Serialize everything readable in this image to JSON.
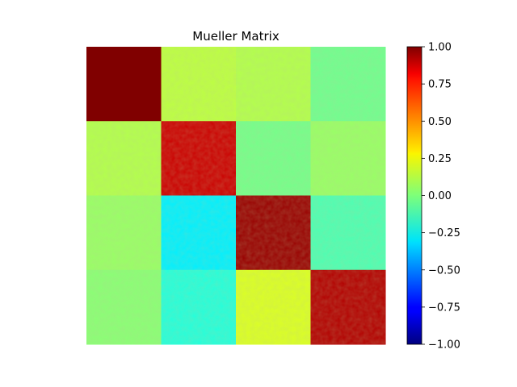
{
  "chart_data": {
    "type": "heatmap",
    "title": "Mueller Matrix",
    "xlabel": "",
    "ylabel": "",
    "rows": 4,
    "cols": 4,
    "values": [
      [
        1.0,
        0.12,
        0.1,
        -0.03
      ],
      [
        0.1,
        0.85,
        -0.02,
        0.05
      ],
      [
        0.05,
        -0.28,
        0.95,
        -0.1
      ],
      [
        0.02,
        -0.18,
        0.18,
        0.9
      ]
    ],
    "colormap": "jet",
    "clim": [
      -1.0,
      1.0
    ],
    "colorbar": {
      "ticks": [
        1.0,
        0.75,
        0.5,
        0.25,
        0.0,
        -0.25,
        -0.5,
        -0.75,
        -1.0
      ],
      "tick_labels": [
        "1.00",
        "0.75",
        "0.50",
        "0.25",
        "0.00",
        "−0.25",
        "−0.50",
        "−0.75",
        "−1.00"
      ],
      "placement": "right"
    },
    "axes_visible": false,
    "grid": false
  }
}
